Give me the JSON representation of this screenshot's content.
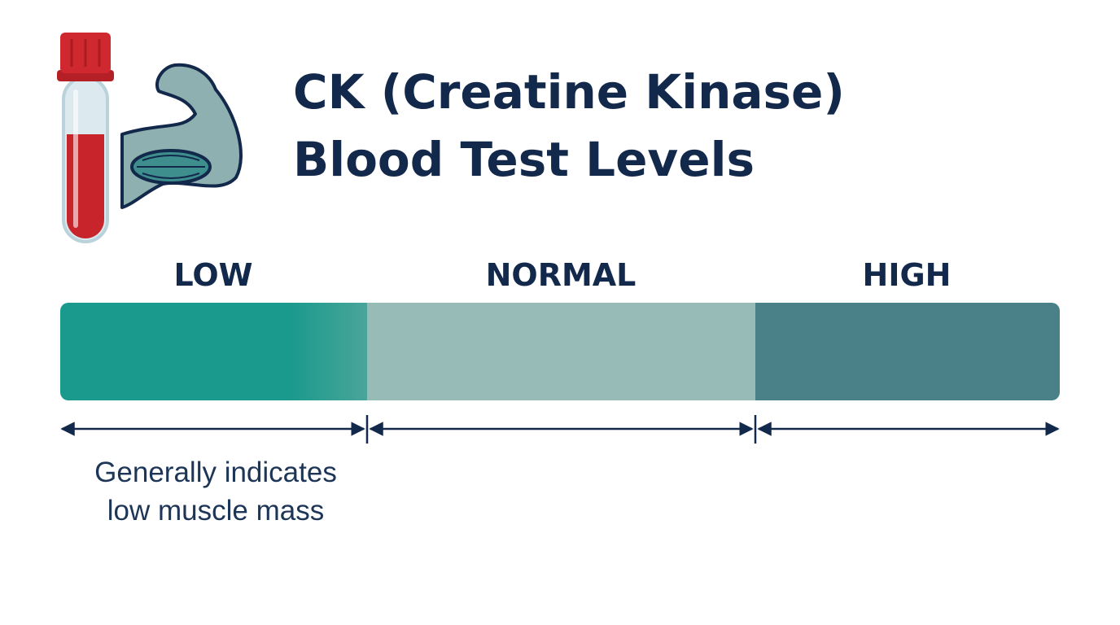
{
  "header": {
    "title_lines": [
      "CK (Creatine Kinase)",
      "Blood Test Levels"
    ]
  },
  "ranges": [
    {
      "label": "LOW"
    },
    {
      "label": "NORMAL"
    },
    {
      "label": "HIGH"
    }
  ],
  "note": {
    "lines": [
      "Generally indicates",
      "low muscle mass"
    ]
  }
}
